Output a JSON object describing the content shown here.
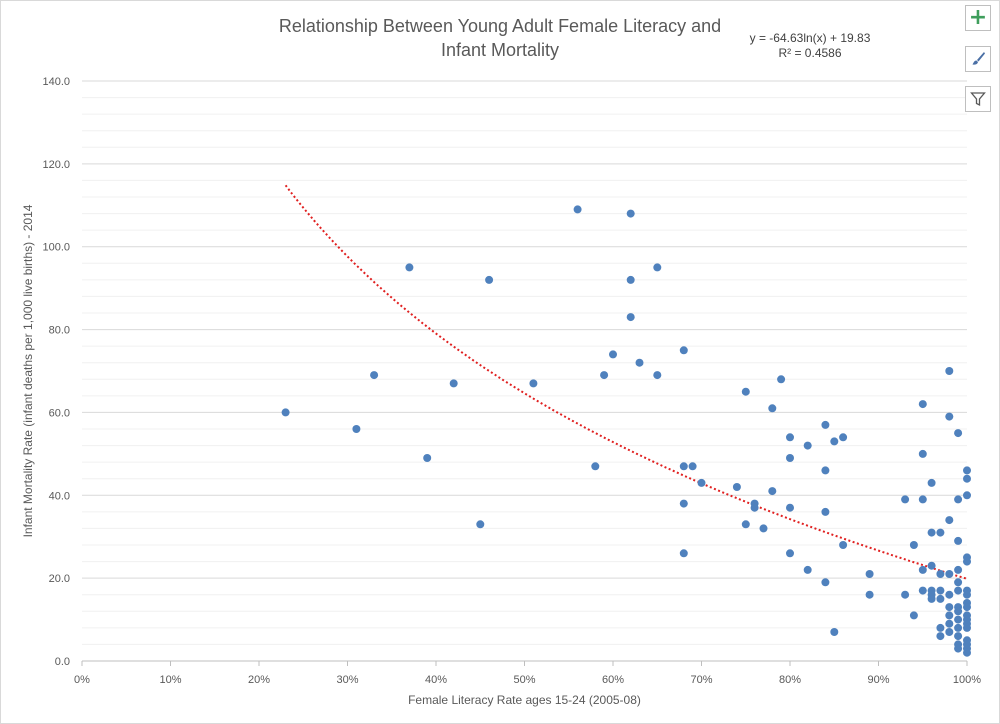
{
  "chart_data": {
    "type": "scatter",
    "title_line1": "Relationship Between Young Adult Female Literacy and",
    "title_line2": "Infant Mortality",
    "xlabel": "Female Literacy Rate ages 15-24 (2005-08)",
    "ylabel": "Infant Mortality Rate (infant deaths per 1,000 live births) - 2014",
    "xlim": [
      0,
      1
    ],
    "ylim": [
      0,
      140
    ],
    "x_ticks": [
      0,
      0.1,
      0.2,
      0.3,
      0.4,
      0.5,
      0.6,
      0.7,
      0.8,
      0.9,
      1.0
    ],
    "x_tick_labels": [
      "0%",
      "10%",
      "20%",
      "30%",
      "40%",
      "50%",
      "60%",
      "70%",
      "80%",
      "90%",
      "100%"
    ],
    "y_ticks": [
      0,
      20,
      40,
      60,
      80,
      100,
      120,
      140
    ],
    "y_tick_labels": [
      "0.0",
      "20.0",
      "40.0",
      "60.0",
      "80.0",
      "100.0",
      "120.0",
      "140.0"
    ],
    "grid": "horizontal major and minor",
    "marker_color": "#4f81bd",
    "trendline_color": "#e02020",
    "trendline": {
      "type": "logarithmic",
      "a": -64.63,
      "b": 19.83,
      "x_range": [
        0.23,
        1.0
      ],
      "equation": "y = -64.63ln(x) + 19.83",
      "r2_text": "R² = 0.4586"
    },
    "series": [
      {
        "points": [
          [
            0.23,
            60
          ],
          [
            0.31,
            56
          ],
          [
            0.33,
            69
          ],
          [
            0.37,
            95
          ],
          [
            0.39,
            49
          ],
          [
            0.42,
            67
          ],
          [
            0.45,
            33
          ],
          [
            0.46,
            92
          ],
          [
            0.51,
            67
          ],
          [
            0.56,
            109
          ],
          [
            0.58,
            47
          ],
          [
            0.59,
            69
          ],
          [
            0.6,
            74
          ],
          [
            0.62,
            108
          ],
          [
            0.62,
            92
          ],
          [
            0.62,
            83
          ],
          [
            0.63,
            72
          ],
          [
            0.65,
            95
          ],
          [
            0.65,
            69
          ],
          [
            0.68,
            75
          ],
          [
            0.68,
            47
          ],
          [
            0.68,
            38
          ],
          [
            0.68,
            26
          ],
          [
            0.69,
            47
          ],
          [
            0.7,
            43
          ],
          [
            0.74,
            42
          ],
          [
            0.75,
            65
          ],
          [
            0.75,
            33
          ],
          [
            0.76,
            38
          ],
          [
            0.76,
            37
          ],
          [
            0.77,
            32
          ],
          [
            0.78,
            61
          ],
          [
            0.78,
            41
          ],
          [
            0.79,
            68
          ],
          [
            0.8,
            54
          ],
          [
            0.8,
            49
          ],
          [
            0.8,
            37
          ],
          [
            0.8,
            26
          ],
          [
            0.82,
            52
          ],
          [
            0.82,
            22
          ],
          [
            0.84,
            57
          ],
          [
            0.84,
            46
          ],
          [
            0.84,
            36
          ],
          [
            0.84,
            19
          ],
          [
            0.85,
            53
          ],
          [
            0.85,
            7
          ],
          [
            0.86,
            54
          ],
          [
            0.86,
            28
          ],
          [
            0.89,
            21
          ],
          [
            0.89,
            16
          ],
          [
            0.93,
            39
          ],
          [
            0.93,
            16
          ],
          [
            0.94,
            28
          ],
          [
            0.94,
            11
          ],
          [
            0.95,
            62
          ],
          [
            0.95,
            50
          ],
          [
            0.95,
            39
          ],
          [
            0.95,
            22
          ],
          [
            0.95,
            17
          ],
          [
            0.96,
            43
          ],
          [
            0.96,
            31
          ],
          [
            0.96,
            23
          ],
          [
            0.96,
            17
          ],
          [
            0.96,
            16
          ],
          [
            0.96,
            15
          ],
          [
            0.97,
            31
          ],
          [
            0.97,
            21
          ],
          [
            0.97,
            17
          ],
          [
            0.97,
            15
          ],
          [
            0.97,
            8
          ],
          [
            0.97,
            6
          ],
          [
            0.98,
            70
          ],
          [
            0.98,
            59
          ],
          [
            0.98,
            34
          ],
          [
            0.98,
            21
          ],
          [
            0.98,
            16
          ],
          [
            0.98,
            13
          ],
          [
            0.98,
            11
          ],
          [
            0.98,
            9
          ],
          [
            0.98,
            7
          ],
          [
            0.99,
            55
          ],
          [
            0.99,
            39
          ],
          [
            0.99,
            29
          ],
          [
            0.99,
            22
          ],
          [
            0.99,
            19
          ],
          [
            0.99,
            17
          ],
          [
            0.99,
            13
          ],
          [
            0.99,
            12
          ],
          [
            0.99,
            10
          ],
          [
            0.99,
            8
          ],
          [
            0.99,
            6
          ],
          [
            0.99,
            4
          ],
          [
            0.99,
            3
          ],
          [
            1.0,
            46
          ],
          [
            1.0,
            44
          ],
          [
            1.0,
            40
          ],
          [
            1.0,
            25
          ],
          [
            1.0,
            24
          ],
          [
            1.0,
            17
          ],
          [
            1.0,
            16
          ],
          [
            1.0,
            14
          ],
          [
            1.0,
            13
          ],
          [
            1.0,
            11
          ],
          [
            1.0,
            10
          ],
          [
            1.0,
            9
          ],
          [
            1.0,
            8
          ],
          [
            1.0,
            5
          ],
          [
            1.0,
            4
          ],
          [
            1.0,
            3
          ],
          [
            1.0,
            2
          ]
        ]
      }
    ]
  },
  "tools": {
    "add_icon": "plus-icon",
    "style_icon": "paintbrush-icon",
    "filter_icon": "filter-icon"
  }
}
